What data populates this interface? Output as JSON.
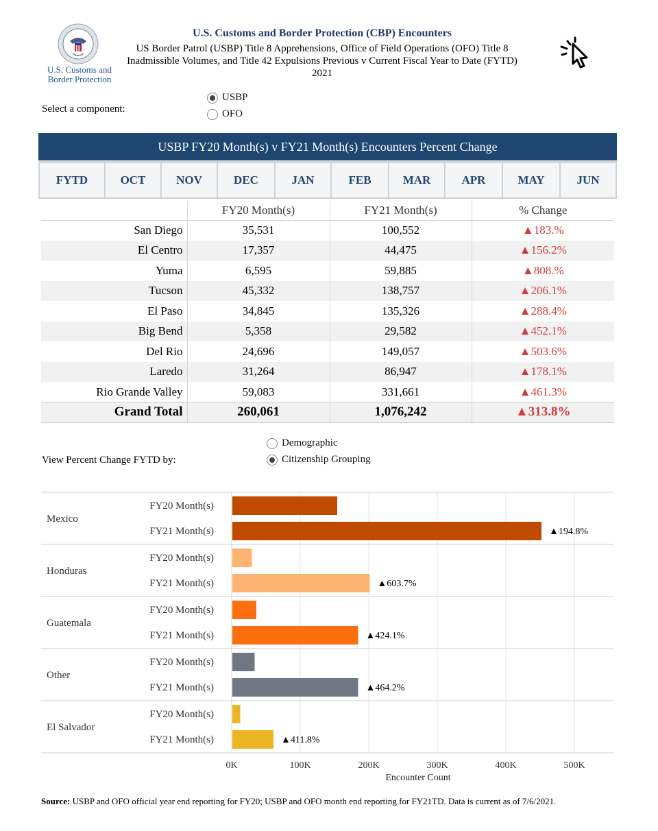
{
  "header": {
    "org_name_line1": "U.S. Customs and",
    "org_name_line2": "Border Protection",
    "title": "U.S. Customs and Border Protection (CBP) Encounters",
    "subtitle": "US Border Patrol (USBP) Title 8 Apprehensions, Office of Field Operations (OFO) Title 8 Inadmissible Volumes, and Title 42 Expulsions Previous v Current Fiscal Year to Date (FYTD) 2021"
  },
  "component_select": {
    "label": "Select a component:",
    "options": [
      "USBP",
      "OFO"
    ],
    "selected": "USBP"
  },
  "banner": {
    "title": "USBP FY20 Month(s) v FY21 Month(s) Encounters Percent Change"
  },
  "tabs": [
    "FYTD",
    "OCT",
    "NOV",
    "DEC",
    "JAN",
    "FEB",
    "MAR",
    "APR",
    "MAY",
    "JUN"
  ],
  "table": {
    "headers": [
      "",
      "FY20 Month(s)",
      "FY21 Month(s)",
      "% Change"
    ],
    "rows": [
      {
        "name": "San Diego",
        "fy20": "35,531",
        "fy21": "100,552",
        "pct": "▲183.%"
      },
      {
        "name": "El Centro",
        "fy20": "17,357",
        "fy21": "44,475",
        "pct": "▲156.2%"
      },
      {
        "name": "Yuma",
        "fy20": "6,595",
        "fy21": "59,885",
        "pct": "▲808.%"
      },
      {
        "name": "Tucson",
        "fy20": "45,332",
        "fy21": "138,757",
        "pct": "▲206.1%"
      },
      {
        "name": "El Paso",
        "fy20": "34,845",
        "fy21": "135,326",
        "pct": "▲288.4%"
      },
      {
        "name": "Big Bend",
        "fy20": "5,358",
        "fy21": "29,582",
        "pct": "▲452.1%"
      },
      {
        "name": "Del Rio",
        "fy20": "24,696",
        "fy21": "149,057",
        "pct": "▲503.6%"
      },
      {
        "name": "Laredo",
        "fy20": "31,264",
        "fy21": "86,947",
        "pct": "▲178.1%"
      },
      {
        "name": "Rio Grande Valley",
        "fy20": "59,083",
        "fy21": "331,661",
        "pct": "▲461.3%"
      }
    ],
    "total": {
      "name": "Grand Total",
      "fy20": "260,061",
      "fy21": "1,076,242",
      "pct": "▲313.8%"
    }
  },
  "view_select": {
    "label": "View Percent Change FYTD by:",
    "options": [
      "Demographic",
      "Citizenship Grouping"
    ],
    "selected": "Citizenship Grouping"
  },
  "chart_data": {
    "type": "bar",
    "orientation": "horizontal",
    "xlabel": "Encounter Count",
    "xlim": [
      0,
      500000
    ],
    "xticks": [
      0,
      100000,
      200000,
      300000,
      400000,
      500000
    ],
    "xtick_labels": [
      "0K",
      "100K",
      "200K",
      "300K",
      "400K",
      "500K"
    ],
    "grid": true,
    "bar_labels": [
      "FY20 Month(s)",
      "FY21 Month(s)"
    ],
    "groups": [
      {
        "name": "Mexico",
        "color": "#c04a00",
        "fy20": 153000,
        "fy21": 451000,
        "change": "▲194.8%"
      },
      {
        "name": "Honduras",
        "color": "#fdb472",
        "fy20": 28500,
        "fy21": 200500,
        "change": "▲603.7%"
      },
      {
        "name": "Guatemala",
        "color": "#fb6f0f",
        "fy20": 35000,
        "fy21": 183500,
        "change": "▲424.1%"
      },
      {
        "name": "Other",
        "color": "#6f7782",
        "fy20": 32500,
        "fy21": 183500,
        "change": "▲464.2%"
      },
      {
        "name": "El Salvador",
        "color": "#ecb526",
        "fy20": 11500,
        "fy21": 60000,
        "change": "▲411.8%"
      }
    ]
  },
  "source": {
    "label": "Source:",
    "text": "USBP and OFO official year end reporting for FY20; USBP and OFO month end reporting for FY21TD. Data is current as of 7/6/2021."
  }
}
